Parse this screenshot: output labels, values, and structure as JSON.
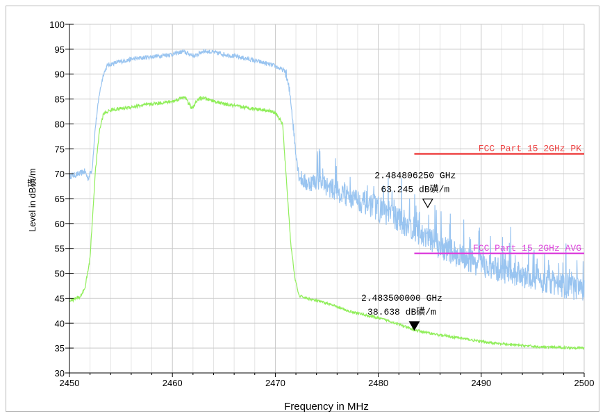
{
  "chart_data": {
    "type": "line",
    "xlabel": "Frequency in MHz",
    "ylabel": "Level in dB磺/m",
    "xlim": [
      2450,
      2500
    ],
    "ylim": [
      30,
      100
    ],
    "x_ticks": [
      2450,
      2460,
      2470,
      2480,
      2490,
      2500
    ],
    "y_ticks": [
      30,
      35,
      40,
      45,
      50,
      55,
      60,
      65,
      70,
      75,
      80,
      85,
      90,
      95,
      100
    ],
    "grid": true,
    "series": [
      {
        "color": "#99c4f0",
        "points": [
          [
            2450,
            69.5
          ],
          [
            2451,
            70
          ],
          [
            2451.5,
            70.5
          ],
          [
            2451.8,
            69
          ],
          [
            2452.2,
            71
          ],
          [
            2452.5,
            79
          ],
          [
            2452.9,
            86
          ],
          [
            2453.3,
            90
          ],
          [
            2453.7,
            91.8
          ],
          [
            2454.5,
            92.3
          ],
          [
            2456,
            93
          ],
          [
            2458,
            93.5
          ],
          [
            2460,
            94
          ],
          [
            2461,
            94.5
          ],
          [
            2461.7,
            94
          ],
          [
            2462.2,
            93.6
          ],
          [
            2463,
            94.7
          ],
          [
            2465,
            94
          ],
          [
            2467,
            93.2
          ],
          [
            2469,
            92.2
          ],
          [
            2470,
            91.6
          ],
          [
            2471,
            90.5
          ],
          [
            2471.5,
            85
          ],
          [
            2471.9,
            76
          ],
          [
            2472.3,
            69.5
          ],
          [
            2473,
            68
          ],
          [
            2474,
            68.6
          ],
          [
            2475,
            67.5
          ],
          [
            2477,
            65.5
          ],
          [
            2479,
            64
          ],
          [
            2481,
            62
          ],
          [
            2483,
            59.5
          ],
          [
            2485,
            56.5
          ],
          [
            2487,
            54.5
          ],
          [
            2489,
            52.5
          ],
          [
            2491,
            51
          ],
          [
            2493,
            50
          ],
          [
            2495,
            49
          ],
          [
            2497,
            48
          ],
          [
            2499,
            47
          ],
          [
            2500,
            46.5
          ]
        ]
      },
      {
        "color": "#90ee5a",
        "points": [
          [
            2450,
            44.5
          ],
          [
            2451,
            45.2
          ],
          [
            2451.5,
            47
          ],
          [
            2452,
            53
          ],
          [
            2452.5,
            70
          ],
          [
            2452.9,
            78.5
          ],
          [
            2453.3,
            82
          ],
          [
            2454,
            82.8
          ],
          [
            2456,
            83.4
          ],
          [
            2458,
            84
          ],
          [
            2460,
            84.5
          ],
          [
            2461.2,
            85.5
          ],
          [
            2461.9,
            83
          ],
          [
            2462.5,
            85
          ],
          [
            2463,
            85.2
          ],
          [
            2465,
            84
          ],
          [
            2467,
            83.3
          ],
          [
            2469,
            82.8
          ],
          [
            2470,
            82.3
          ],
          [
            2470.7,
            80
          ],
          [
            2471.1,
            68
          ],
          [
            2471.5,
            56
          ],
          [
            2471.9,
            49
          ],
          [
            2472.3,
            45.5
          ],
          [
            2473,
            45
          ],
          [
            2475,
            44
          ],
          [
            2477,
            42.5
          ],
          [
            2479,
            41.5
          ],
          [
            2481,
            40.5
          ],
          [
            2483.5,
            38.6
          ],
          [
            2486,
            37.6
          ],
          [
            2488,
            37
          ],
          [
            2490,
            36.3
          ],
          [
            2492,
            35.8
          ],
          [
            2494,
            35.5
          ],
          [
            2496,
            35.2
          ],
          [
            2498,
            35.1
          ],
          [
            2500,
            35
          ]
        ]
      }
    ],
    "limit_lines": [
      {
        "label": "FCC Part 15 2GHz PK",
        "y": 74,
        "x_start": 2483.5,
        "x_end": 2500,
        "color": "#ee4444"
      },
      {
        "label": "FCC Part 15 2GHz AVG",
        "y": 54,
        "x_start": 2483.5,
        "x_end": 2500,
        "color": "#dd44dd"
      }
    ],
    "markers": [
      {
        "frequency": "2.484806250 GHz",
        "level": "63.245 dB磺/m",
        "x": 2484.806,
        "y": 63.245,
        "style": "hollow"
      },
      {
        "frequency": "2.483500000 GHz",
        "level": "38.638 dB磺/m",
        "x": 2483.5,
        "y": 38.638,
        "style": "filled"
      }
    ]
  }
}
